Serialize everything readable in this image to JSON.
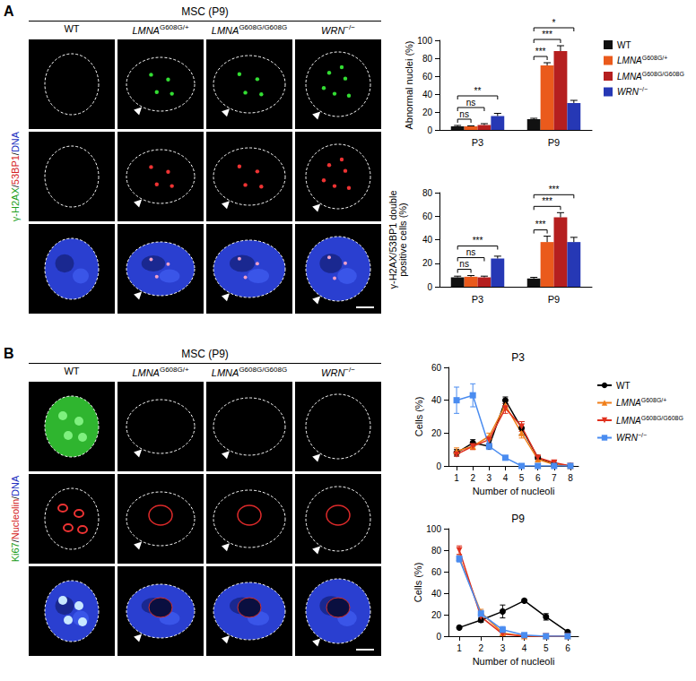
{
  "figure": {
    "panels": [
      {
        "label": "A",
        "header": "MSC (P9)",
        "columns": [
          {
            "name": "WT"
          },
          {
            "name": "LMNA",
            "superscript": "G608G/+"
          },
          {
            "name": "LMNA",
            "superscript": "G608G/G608G"
          },
          {
            "name": "WRN",
            "superscript": "−/−"
          }
        ],
        "stain": [
          {
            "text": "γ-H2AX",
            "color": "#1a9e1a"
          },
          {
            "text": "/",
            "color": "#000000"
          },
          {
            "text": "53BP1",
            "color": "#d42020"
          },
          {
            "text": "/",
            "color": "#000000"
          },
          {
            "text": "DNA",
            "color": "#2030c0"
          }
        ]
      },
      {
        "label": "B",
        "header": "MSC (P9)",
        "columns": [
          {
            "name": "WT"
          },
          {
            "name": "LMNA",
            "superscript": "G608G/+"
          },
          {
            "name": "LMNA",
            "superscript": "G608G/G608G"
          },
          {
            "name": "WRN",
            "superscript": "−/−"
          }
        ],
        "stain": [
          {
            "text": "Ki67",
            "color": "#1a9e1a"
          },
          {
            "text": "/",
            "color": "#000000"
          },
          {
            "text": "Nucleolin",
            "color": "#d42020"
          },
          {
            "text": "/",
            "color": "#000000"
          },
          {
            "text": "DNA",
            "color": "#2030c0"
          }
        ]
      }
    ]
  },
  "chart_data": [
    {
      "type": "bar",
      "ylabel": "Abnormal nuclei (%)",
      "categories": [
        "P3",
        "P9"
      ],
      "ylim": [
        0,
        100
      ],
      "yticks": [
        0,
        20,
        40,
        60,
        80,
        100
      ],
      "legend": "right",
      "series": [
        {
          "name": "WT",
          "color": "#111111",
          "values": [
            4,
            12
          ],
          "errors": [
            1,
            1
          ]
        },
        {
          "name": "LMNA",
          "superscript": "G608G/+",
          "color": "#ea5a1c",
          "values": [
            4,
            72
          ],
          "errors": [
            0.5,
            3
          ]
        },
        {
          "name": "LMNA",
          "superscript": "G608G/G608G",
          "color": "#b51f1f",
          "values": [
            5.5,
            88
          ],
          "errors": [
            1.5,
            6
          ]
        },
        {
          "name": "WRN",
          "superscript": "−/−",
          "color": "#2638b5",
          "values": [
            15.5,
            30
          ],
          "errors": [
            3,
            3
          ]
        }
      ],
      "annotations": [
        {
          "category": "P3",
          "pair": [
            0,
            1
          ],
          "text": "ns"
        },
        {
          "category": "P3",
          "pair": [
            0,
            2
          ],
          "text": "ns"
        },
        {
          "category": "P3",
          "pair": [
            0,
            3
          ],
          "text": "**"
        },
        {
          "category": "P9",
          "pair": [
            0,
            1
          ],
          "text": "***"
        },
        {
          "category": "P9",
          "pair": [
            0,
            2
          ],
          "text": "***"
        },
        {
          "category": "P9",
          "pair": [
            0,
            3
          ],
          "text": "*"
        }
      ]
    },
    {
      "type": "bar",
      "ylabel": "γ-H2AX/53BP1 double\npositive cells (%)",
      "categories": [
        "P3",
        "P9"
      ],
      "ylim": [
        0,
        80
      ],
      "yticks": [
        0,
        20,
        40,
        60,
        80
      ],
      "series": [
        {
          "name": "WT",
          "color": "#111111",
          "values": [
            8,
            7
          ],
          "errors": [
            1,
            1
          ]
        },
        {
          "name": "LMNA",
          "superscript": "G608G/+",
          "color": "#ea5a1c",
          "values": [
            8.5,
            38
          ],
          "errors": [
            1,
            5
          ]
        },
        {
          "name": "LMNA",
          "superscript": "G608G/G608G",
          "color": "#b51f1f",
          "values": [
            8,
            59
          ],
          "errors": [
            1,
            4
          ]
        },
        {
          "name": "WRN",
          "superscript": "−/−",
          "color": "#2638b5",
          "values": [
            24,
            38
          ],
          "errors": [
            2,
            4
          ]
        }
      ],
      "annotations": [
        {
          "category": "P3",
          "pair": [
            0,
            1
          ],
          "text": "ns"
        },
        {
          "category": "P3",
          "pair": [
            0,
            2
          ],
          "text": "ns"
        },
        {
          "category": "P3",
          "pair": [
            0,
            3
          ],
          "text": "***"
        },
        {
          "category": "P9",
          "pair": [
            0,
            1
          ],
          "text": "***"
        },
        {
          "category": "P9",
          "pair": [
            0,
            2
          ],
          "text": "***"
        },
        {
          "category": "P9",
          "pair": [
            0,
            3
          ],
          "text": "***"
        }
      ]
    },
    {
      "type": "line",
      "title": "P3",
      "xlabel": "Number of nucleoli",
      "ylabel": "Cells (%)",
      "x": [
        1,
        2,
        3,
        4,
        5,
        6,
        7,
        8
      ],
      "xlim": [
        0.5,
        8.5
      ],
      "xticks": [
        1,
        2,
        3,
        4,
        5,
        6,
        7,
        8
      ],
      "ylim": [
        0,
        60
      ],
      "yticks": [
        0,
        20,
        40,
        60
      ],
      "legend": "right",
      "series": [
        {
          "name": "WT",
          "color": "#000000",
          "marker": "circle",
          "values": [
            8,
            14,
            12,
            40,
            23,
            5,
            1,
            0
          ],
          "errors": [
            2,
            2,
            1,
            2,
            4,
            1,
            1,
            0
          ]
        },
        {
          "name": "LMNA",
          "superscript": "G608G/+",
          "color": "#f07f1a",
          "marker": "triangle",
          "values": [
            9,
            12,
            18,
            37,
            20,
            4,
            1,
            0
          ],
          "errors": [
            2,
            2,
            2,
            3,
            3,
            1,
            1,
            0
          ]
        },
        {
          "name": "LMNA",
          "superscript": "G608G/G608G",
          "color": "#e0301e",
          "marker": "triangle-down",
          "values": [
            7,
            12,
            16,
            35,
            24,
            5,
            2,
            0
          ],
          "errors": [
            1,
            2,
            2,
            3,
            3,
            1,
            1,
            0
          ]
        },
        {
          "name": "WRN",
          "superscript": "−/−",
          "color": "#4a8cf0",
          "marker": "square",
          "values": [
            40,
            43,
            12,
            5,
            0,
            0,
            0,
            0
          ],
          "errors": [
            8,
            7,
            2,
            1,
            0,
            0,
            0,
            0
          ]
        }
      ]
    },
    {
      "type": "line",
      "title": "P9",
      "xlabel": "Number of nucleoli",
      "ylabel": "Cells (%)",
      "x": [
        1,
        2,
        3,
        4,
        5,
        6
      ],
      "xlim": [
        0.5,
        6.5
      ],
      "xticks": [
        1,
        2,
        3,
        4,
        5,
        6
      ],
      "ylim": [
        0,
        100
      ],
      "yticks": [
        0,
        20,
        40,
        60,
        80,
        100
      ],
      "series": [
        {
          "name": "WT",
          "color": "#000000",
          "marker": "circle",
          "values": [
            8,
            15,
            23,
            33,
            18,
            4
          ],
          "errors": [
            1,
            2,
            6,
            1,
            3,
            1
          ]
        },
        {
          "name": "LMNA",
          "superscript": "G608G/+",
          "color": "#f07f1a",
          "marker": "triangle",
          "values": [
            73,
            22,
            3,
            0,
            0,
            0
          ],
          "errors": [
            3,
            3,
            2,
            0,
            0,
            0
          ]
        },
        {
          "name": "LMNA",
          "superscript": "G608G/G608G",
          "color": "#e0301e",
          "marker": "triangle-down",
          "values": [
            80,
            18,
            2,
            0,
            0,
            0
          ],
          "errors": [
            4,
            3,
            1,
            0,
            0,
            0
          ]
        },
        {
          "name": "WRN",
          "superscript": "−/−",
          "color": "#4a8cf0",
          "marker": "square",
          "values": [
            72,
            21,
            6,
            1,
            0,
            0
          ],
          "errors": [
            3,
            3,
            3,
            1,
            0,
            0
          ]
        }
      ]
    }
  ]
}
